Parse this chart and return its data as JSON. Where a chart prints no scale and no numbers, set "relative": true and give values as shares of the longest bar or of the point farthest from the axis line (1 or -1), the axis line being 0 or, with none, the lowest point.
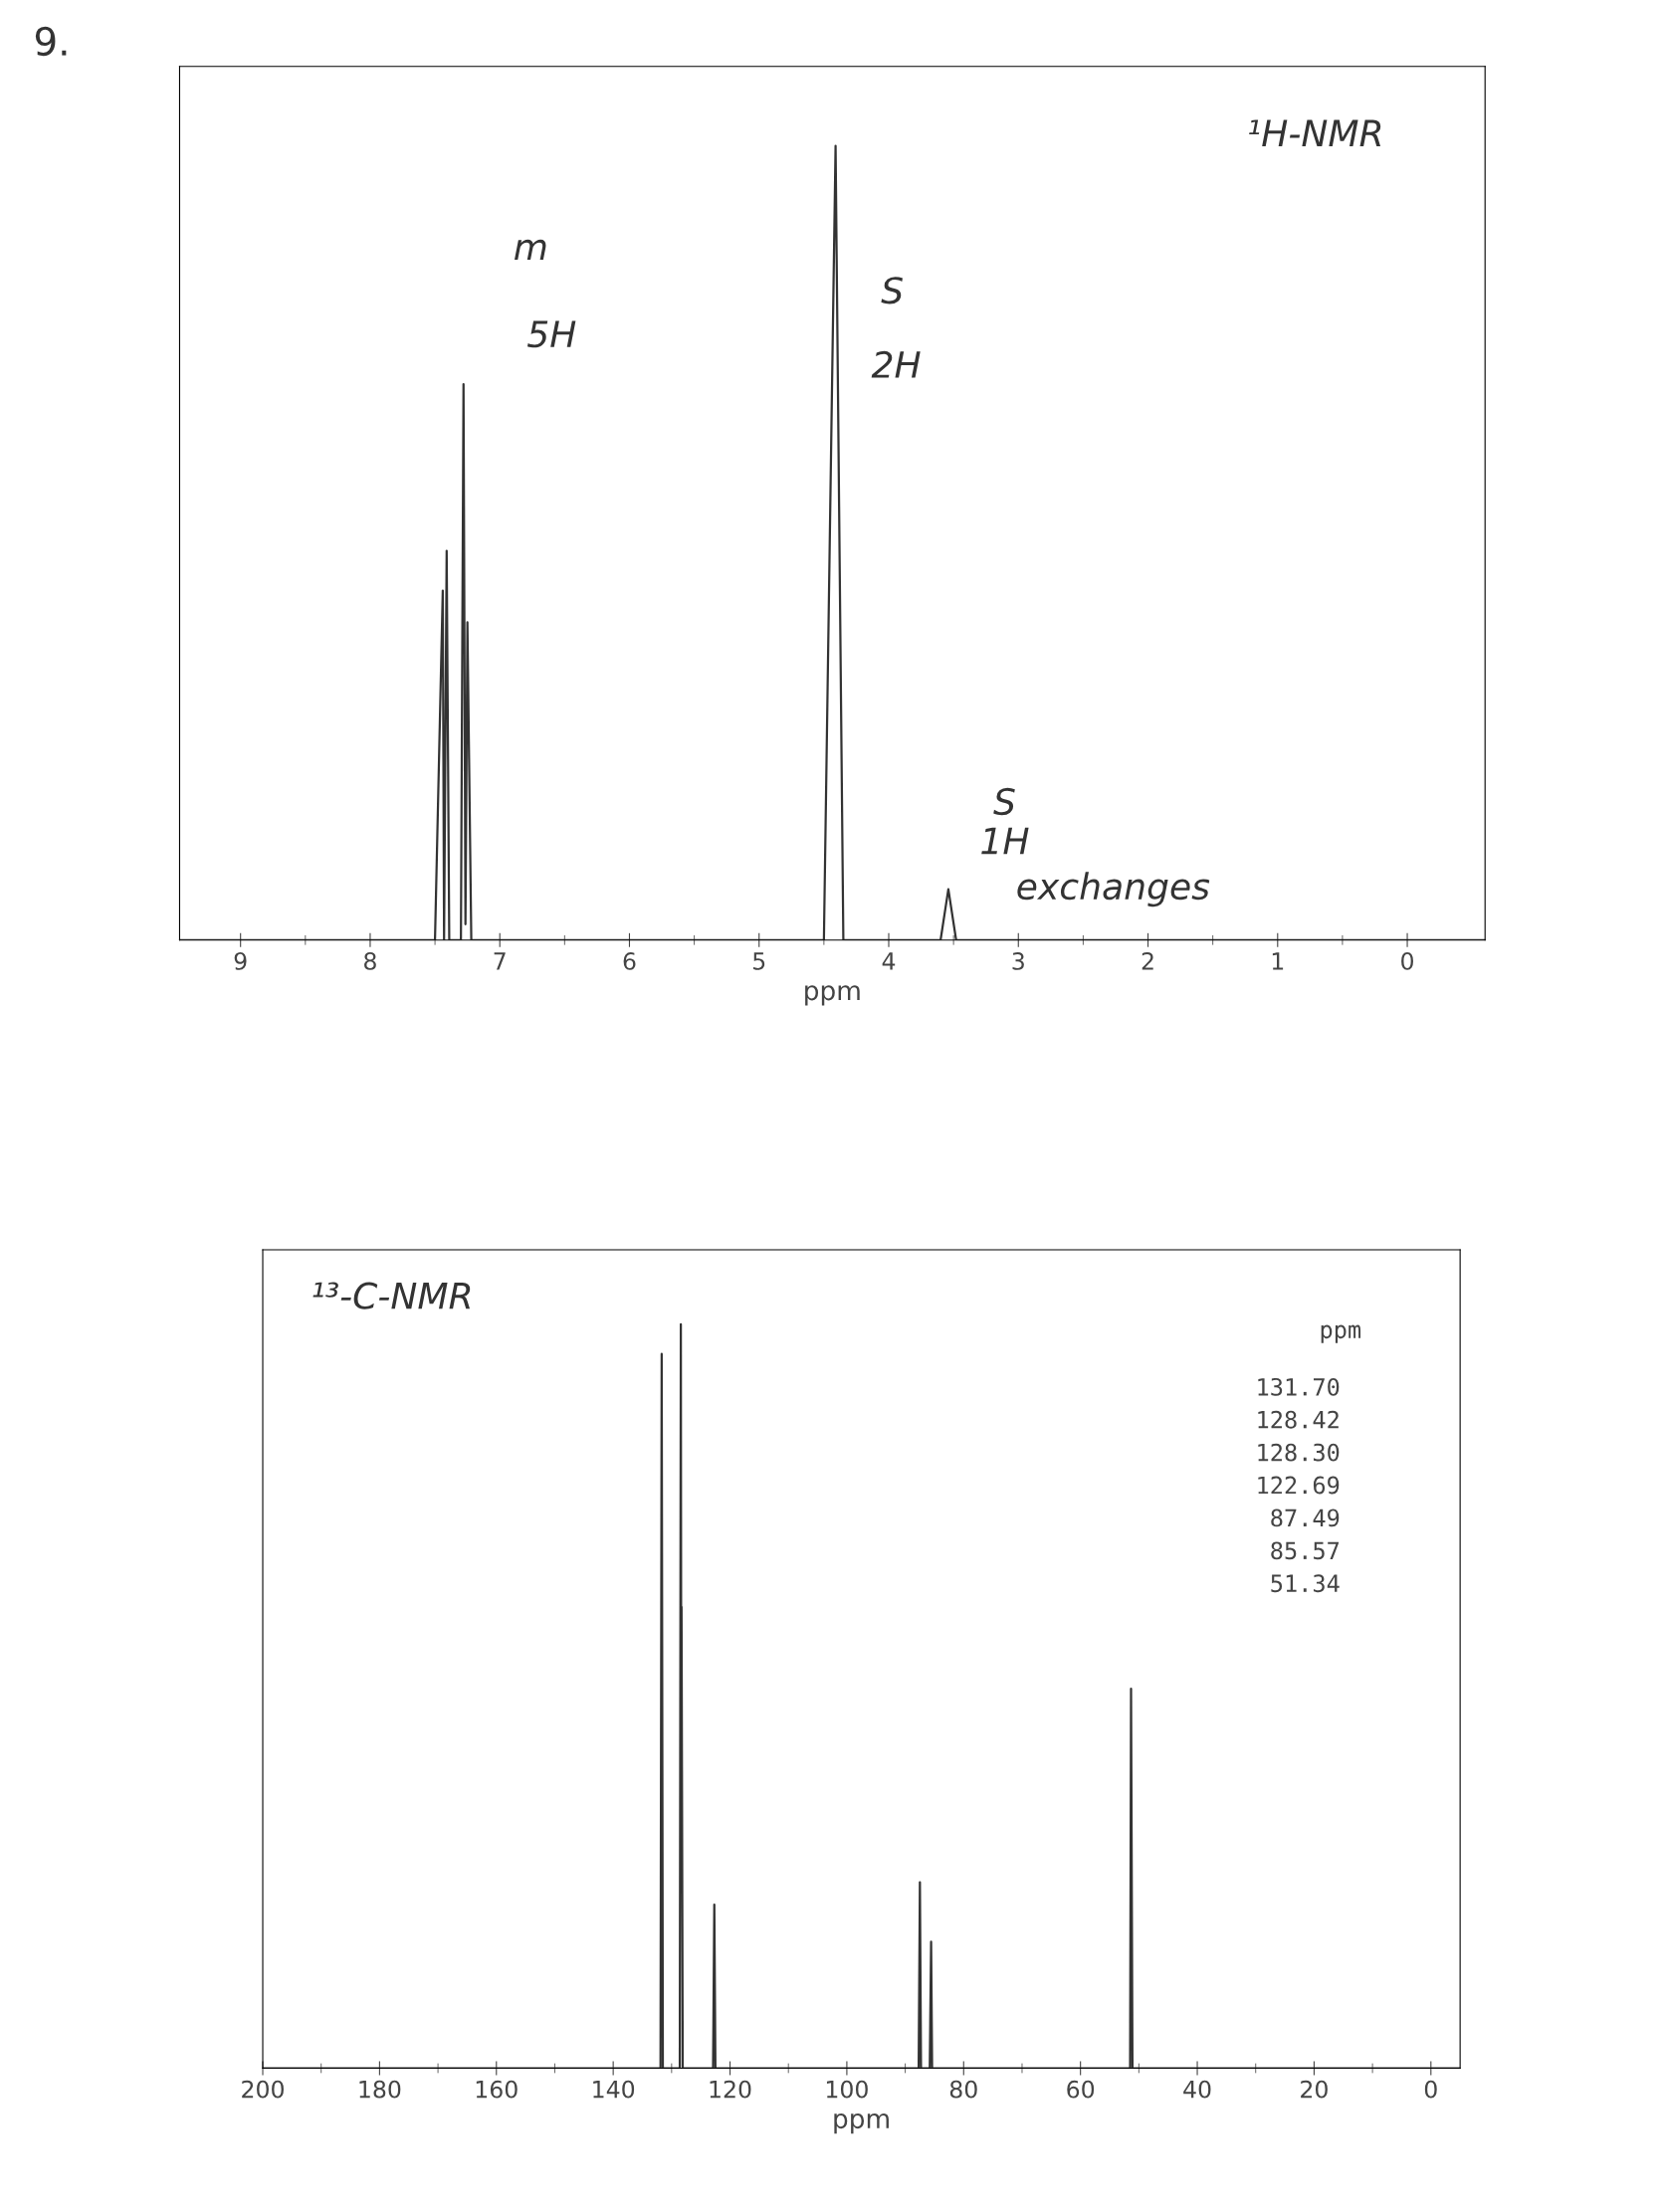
{
  "chart_data": [
    {
      "type": "line",
      "title": "9.",
      "xlabel": "ppm",
      "relative": true,
      "tick_labels": "x",
      "grid": false,
      "marker": "none",
      "line_style": "solid",
      "xlim": [
        9.47,
        -0.6
      ],
      "xticks": [
        9,
        {
          "value": 8.5,
          "label": null
        },
        8,
        {
          "value": 7.5,
          "label": null
        },
        7,
        {
          "value": 6.5,
          "label": null
        },
        6,
        {
          "value": 5.5,
          "label": null
        },
        5,
        {
          "value": 4.5,
          "label": null
        },
        4,
        {
          "value": 3.5,
          "label": null
        },
        3,
        {
          "value": 2.5,
          "label": null
        },
        2,
        {
          "value": 1.5,
          "label": null
        },
        1,
        {
          "value": 0.5,
          "label": null
        },
        0
      ],
      "series": [
        {
          "color": "#333333",
          "x": [
            9.47,
            7.5,
            7.44,
            7.43,
            7.41,
            7.39,
            7.3,
            7.28,
            7.265,
            7.25,
            7.22,
            4.5,
            4.41,
            4.35,
            3.6,
            3.54,
            3.48,
            -0.6
          ],
          "values": [
            0,
            0,
            0.44,
            0,
            0.49,
            0,
            0,
            0.7,
            0.02,
            0.4,
            0,
            0,
            1,
            0,
            0,
            0.064,
            0,
            0
          ]
        }
      ],
      "annotations": [
        "¹H-NMR",
        "m",
        "5H",
        "S",
        "2H",
        "S",
        "1H",
        "exchanges"
      ]
    },
    {
      "type": "line",
      "xlabel": "ppm",
      "relative": true,
      "tick_labels": "x",
      "grid": false,
      "marker": "none",
      "line_style": "solid",
      "xlim": [
        200,
        -5
      ],
      "xticks": [
        200,
        {
          "value": 190,
          "label": null
        },
        180,
        {
          "value": 170,
          "label": null
        },
        160,
        {
          "value": 150,
          "label": null
        },
        140,
        {
          "value": 130,
          "label": null
        },
        120,
        {
          "value": 110,
          "label": null
        },
        100,
        {
          "value": 90,
          "label": null
        },
        80,
        {
          "value": 70,
          "label": null
        },
        60,
        {
          "value": 50,
          "label": null
        },
        40,
        {
          "value": 30,
          "label": null
        },
        20,
        {
          "value": 10,
          "label": null
        },
        0
      ],
      "series": [
        {
          "color": "#333333",
          "x": [
            200,
            131.9,
            131.7,
            131.5,
            128.6,
            128.42,
            128.36,
            128.3,
            128.1,
            122.9,
            122.69,
            122.5,
            87.7,
            87.49,
            87.3,
            85.8,
            85.57,
            85.4,
            51.5,
            51.34,
            51.1,
            -5
          ],
          "values": [
            0,
            0,
            0.96,
            0,
            0,
            1,
            0.5,
            0.62,
            0,
            0,
            0.22,
            0,
            0,
            0.25,
            0,
            0,
            0.17,
            0,
            0,
            0.51,
            0,
            0
          ]
        }
      ],
      "annotations": [
        "¹³-C-NMR",
        "ppm",
        "131.70",
        "128.42",
        "128.30",
        "122.69",
        "87.49",
        "85.57",
        "51.34"
      ]
    }
  ]
}
